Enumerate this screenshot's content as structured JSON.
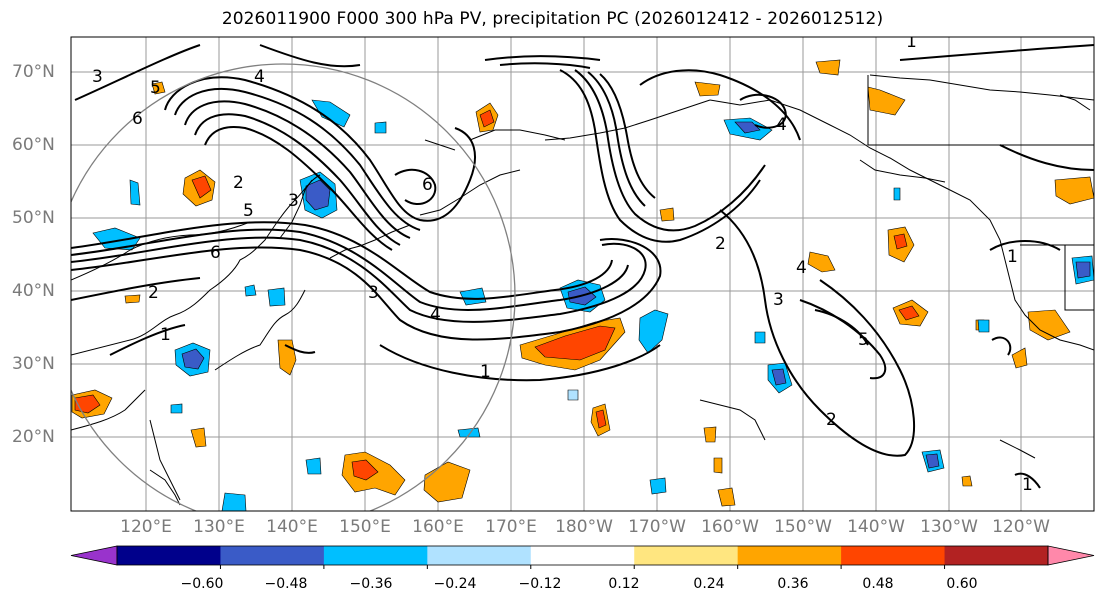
{
  "title": "2026011900 F000 300 hPa PV, precipitation PC (2026012412 - 2026012512)",
  "map": {
    "lat_labels": [
      "70°N",
      "60°N",
      "50°N",
      "40°N",
      "30°N",
      "20°N"
    ],
    "lon_labels": [
      "120°E",
      "130°E",
      "140°E",
      "150°E",
      "160°E",
      "170°E",
      "180°W",
      "170°W",
      "160°W",
      "150°W",
      "140°W",
      "130°W",
      "120°W"
    ],
    "contour_labels": [
      "1",
      "2",
      "3",
      "4",
      "5",
      "6"
    ],
    "colors": {
      "coast": "#000000",
      "grid": "#9a9a9a",
      "circle": "#808080"
    }
  },
  "colorbar": {
    "tick_labels": [
      "−0.60",
      "−0.48",
      "−0.36",
      "−0.24",
      "−0.12",
      "0.12",
      "0.24",
      "0.36",
      "0.48",
      "0.60"
    ],
    "colors": [
      "#9933cc",
      "#00008b",
      "#3a5bc7",
      "#00bfff",
      "#b0e2ff",
      "#ffffff",
      "#ffe680",
      "#ffa500",
      "#ff4500",
      "#b22222",
      "#ff88aa"
    ]
  }
}
